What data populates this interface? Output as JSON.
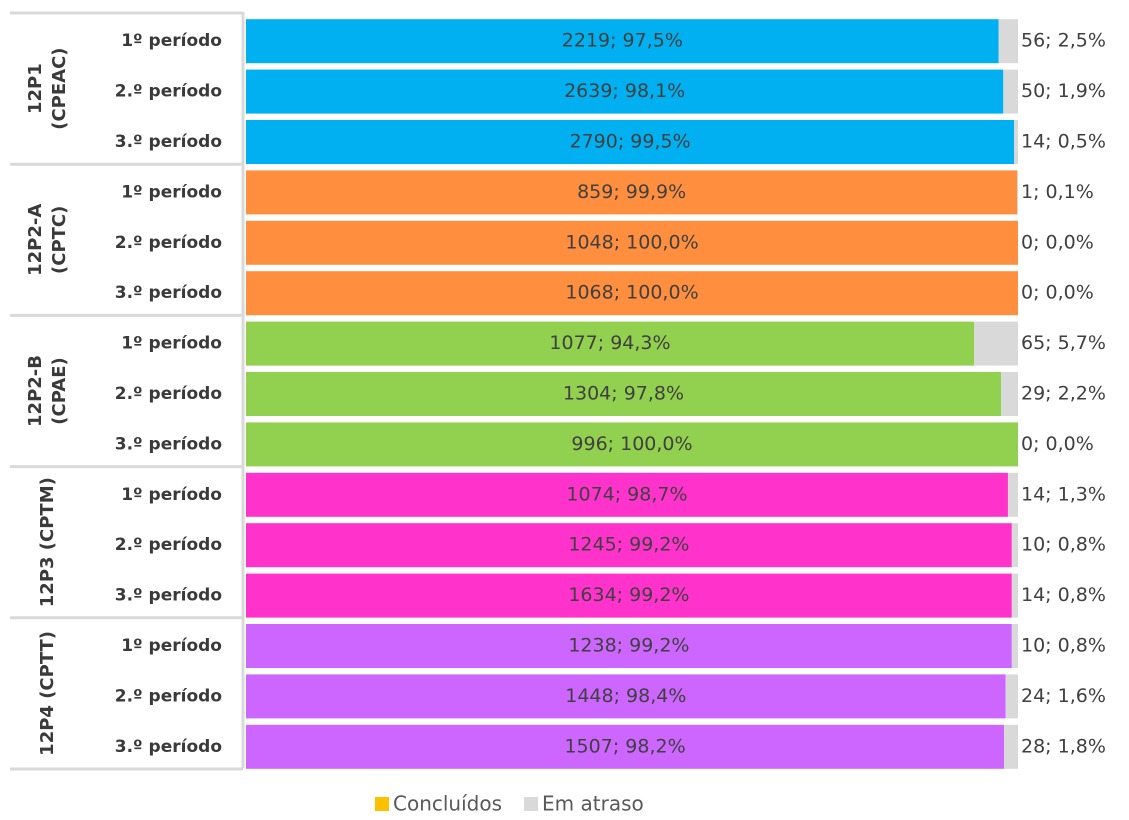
{
  "chart_data": {
    "type": "stacked-bar-100",
    "groups": [
      {
        "label": [
          "12P1",
          "(CPEAC)"
        ],
        "color": "#00b0f0",
        "categories": [
          "1º período",
          "2.º período",
          "3.º período"
        ]
      },
      {
        "label": [
          "12P2-A",
          "(CPTC)"
        ],
        "color": "#ff8f3f",
        "categories": [
          "1º período",
          "2.º período",
          "3.º período"
        ]
      },
      {
        "label": [
          "12P2-B",
          "(CPAE)"
        ],
        "color": "#92d050",
        "categories": [
          "1º período",
          "2.º período",
          "3.º período"
        ]
      },
      {
        "label": [
          "12P3 (CPTM)"
        ],
        "color": "#ff33cc",
        "categories": [
          "1º período",
          "2.º período",
          "3.º período"
        ]
      },
      {
        "label": [
          "12P4 (CPTT)"
        ],
        "color": "#cc66ff",
        "categories": [
          "1º período",
          "2.º período",
          "3.º período"
        ]
      }
    ],
    "series": [
      {
        "name": "Concluídos",
        "color": "#ffc000",
        "values": [
          97.5,
          98.1,
          99.5,
          99.9,
          100.0,
          100.0,
          94.3,
          97.8,
          100.0,
          98.7,
          99.2,
          99.2,
          99.2,
          98.4,
          98.2
        ],
        "value_labels": [
          "2219; 97,5%",
          "2639; 98,1%",
          "2790; 99,5%",
          "859; 99,9%",
          "1048; 100,0%",
          "1068; 100,0%",
          "1077; 94,3%",
          "1304; 97,8%",
          "996; 100,0%",
          "1074; 98,7%",
          "1245; 99,2%",
          "1634; 99,2%",
          "1238; 99,2%",
          "1448; 98,4%",
          "1507; 98,2%"
        ]
      },
      {
        "name": "Em atraso",
        "color": "#d9d9d9",
        "values": [
          2.5,
          1.9,
          0.5,
          0.1,
          0.0,
          0.0,
          5.7,
          2.2,
          0.0,
          1.3,
          0.8,
          0.8,
          0.8,
          1.6,
          1.8
        ],
        "value_labels": [
          "56; 2,5%",
          "50; 1,9%",
          "14; 0,5%",
          "1; 0,1%",
          "0; 0,0%",
          "0; 0,0%",
          "65; 5,7%",
          "29; 2,2%",
          "0; 0,0%",
          "14; 1,3%",
          "10; 0,8%",
          "14; 0,8%",
          "10; 0,8%",
          "24; 1,6%",
          "28; 1,8%"
        ]
      }
    ]
  }
}
